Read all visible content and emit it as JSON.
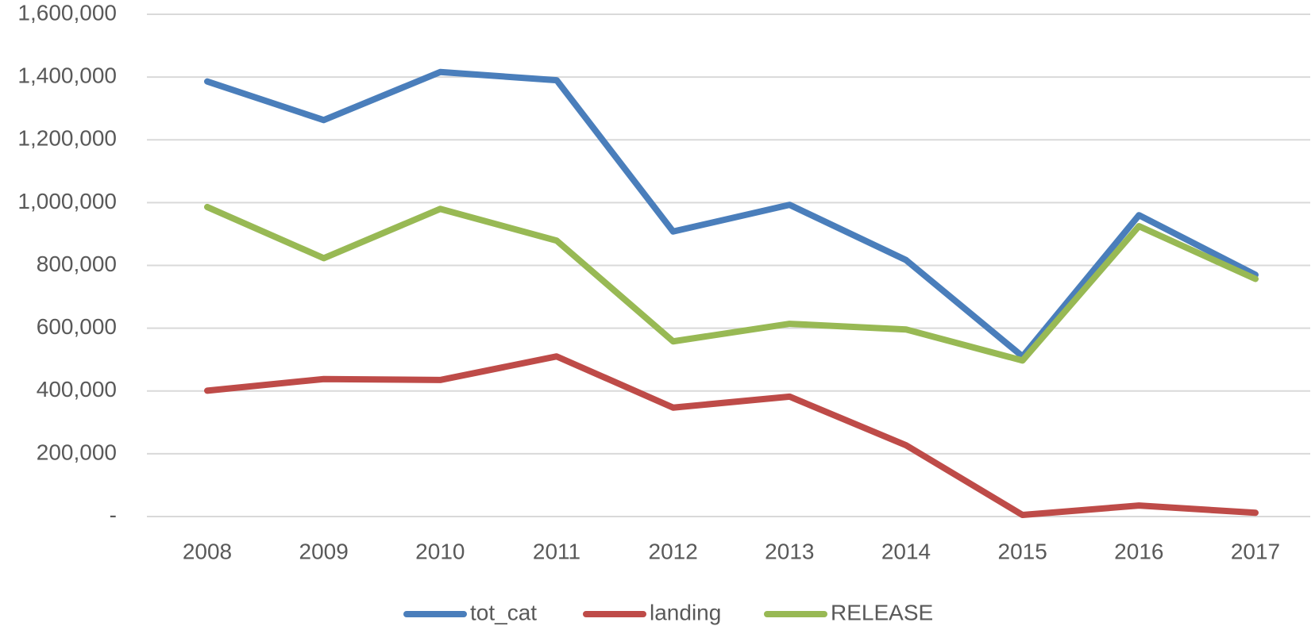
{
  "chart_data": {
    "type": "line",
    "categories": [
      "2008",
      "2009",
      "2010",
      "2011",
      "2012",
      "2013",
      "2014",
      "2015",
      "2016",
      "2017"
    ],
    "series": [
      {
        "name": "tot_cat",
        "color": "#4a7ebb",
        "values": [
          1386000,
          1263000,
          1416000,
          1390000,
          908000,
          993000,
          817000,
          510000,
          960000,
          770000
        ]
      },
      {
        "name": "landing",
        "color": "#be4b48",
        "values": [
          401000,
          438000,
          435000,
          510000,
          347000,
          382000,
          227000,
          5000,
          35000,
          12000
        ]
      },
      {
        "name": "RELEASE",
        "color": "#98b954",
        "values": [
          986000,
          823000,
          980000,
          879000,
          558000,
          614000,
          596000,
          497000,
          925000,
          757000
        ]
      }
    ],
    "ylim": [
      0,
      1600000
    ],
    "yticks": [
      {
        "value": 0,
        "label": "-"
      },
      {
        "value": 200000,
        "label": "200,000"
      },
      {
        "value": 400000,
        "label": "400,000"
      },
      {
        "value": 600000,
        "label": "600,000"
      },
      {
        "value": 800000,
        "label": "800,000"
      },
      {
        "value": 1000000,
        "label": "1,000,000"
      },
      {
        "value": 1200000,
        "label": "1,200,000"
      },
      {
        "value": 1400000,
        "label": "1,400,000"
      },
      {
        "value": 1600000,
        "label": "1,600,000"
      }
    ],
    "grid": true,
    "legend": "bottom"
  }
}
